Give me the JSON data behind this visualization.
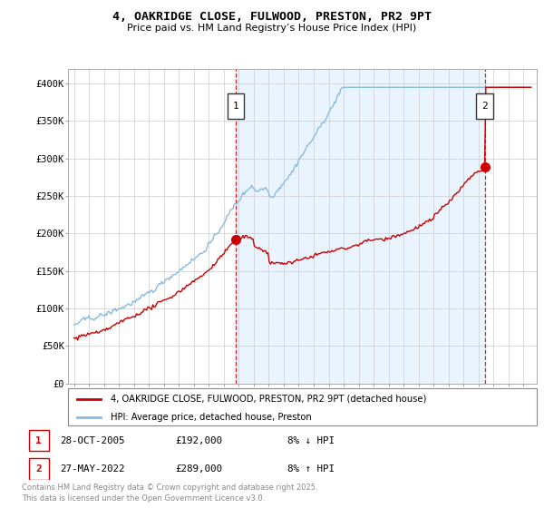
{
  "title": "4, OAKRIDGE CLOSE, FULWOOD, PRESTON, PR2 9PT",
  "subtitle": "Price paid vs. HM Land Registry’s House Price Index (HPI)",
  "hpi_label": "HPI: Average price, detached house, Preston",
  "property_label": "4, OAKRIDGE CLOSE, FULWOOD, PRESTON, PR2 9PT (detached house)",
  "transaction1_date": "28-OCT-2005",
  "transaction1_price": "£192,000",
  "transaction1_hpi": "8% ↓ HPI",
  "transaction2_date": "27-MAY-2022",
  "transaction2_price": "£289,000",
  "transaction2_hpi": "8% ↑ HPI",
  "footer_line1": "Contains HM Land Registry data © Crown copyright and database right 2025.",
  "footer_line2": "This data is licensed under the Open Government Licence v3.0.",
  "hpi_color": "#88bbdd",
  "hpi_fill_color": "#ddeeff",
  "property_color": "#cc0000",
  "vline_color": "#cc0000",
  "grid_color": "#cccccc",
  "bg_color": "#ffffff",
  "ylim_min": 0,
  "ylim_max": 420000,
  "yticks": [
    0,
    50000,
    100000,
    150000,
    200000,
    250000,
    300000,
    350000,
    400000
  ],
  "ytick_labels": [
    "£0",
    "£50K",
    "£100K",
    "£150K",
    "£200K",
    "£250K",
    "£300K",
    "£350K",
    "£400K"
  ],
  "t1_year": 2005.82,
  "t1_price": 192000,
  "t2_year": 2022.41,
  "t2_price": 289000,
  "start_year": 1995,
  "end_year": 2025
}
